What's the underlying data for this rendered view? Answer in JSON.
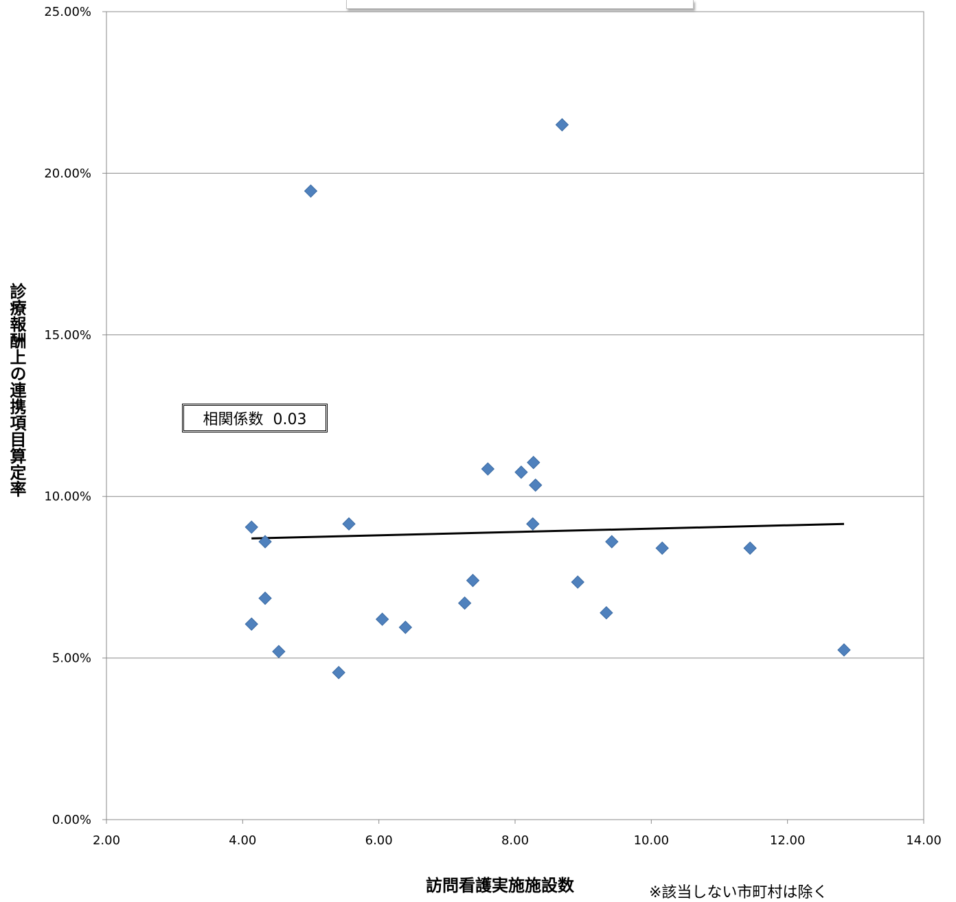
{
  "chart_data": {
    "type": "scatter",
    "xlabel": "訪問看護実施施設数",
    "ylabel": "診療報酬上の連携項目算定率",
    "note": "※該当しない市町村は除く",
    "annotation": "相関係数  0.03",
    "xlim": [
      2,
      14
    ],
    "ylim": [
      0,
      25
    ],
    "x_ticks": [
      "2.00",
      "4.00",
      "6.00",
      "8.00",
      "10.00",
      "12.00",
      "14.00"
    ],
    "y_ticks": [
      "0.00%",
      "5.00%",
      "10.00%",
      "15.00%",
      "20.00%",
      "25.00%"
    ],
    "grid": "horizontal",
    "marker_color": "#4f81bd",
    "trendline_color": "#000000",
    "points": [
      {
        "x": 4.13,
        "y": 9.05
      },
      {
        "x": 4.33,
        "y": 8.6
      },
      {
        "x": 4.33,
        "y": 6.85
      },
      {
        "x": 4.13,
        "y": 6.05
      },
      {
        "x": 4.53,
        "y": 5.2
      },
      {
        "x": 5.0,
        "y": 19.45
      },
      {
        "x": 5.41,
        "y": 4.55
      },
      {
        "x": 5.56,
        "y": 9.15
      },
      {
        "x": 6.05,
        "y": 6.2
      },
      {
        "x": 6.39,
        "y": 5.95
      },
      {
        "x": 7.26,
        "y": 6.7
      },
      {
        "x": 7.38,
        "y": 7.4
      },
      {
        "x": 7.6,
        "y": 10.85
      },
      {
        "x": 8.09,
        "y": 10.75
      },
      {
        "x": 8.27,
        "y": 11.05
      },
      {
        "x": 8.3,
        "y": 10.35
      },
      {
        "x": 8.26,
        "y": 9.15
      },
      {
        "x": 8.69,
        "y": 21.5
      },
      {
        "x": 8.92,
        "y": 7.35
      },
      {
        "x": 9.34,
        "y": 6.4
      },
      {
        "x": 9.42,
        "y": 8.6
      },
      {
        "x": 10.16,
        "y": 8.4
      },
      {
        "x": 11.45,
        "y": 8.4
      },
      {
        "x": 12.83,
        "y": 5.25
      }
    ],
    "trendline": [
      {
        "x": 4.13,
        "y": 8.7
      },
      {
        "x": 12.83,
        "y": 9.15
      }
    ]
  }
}
